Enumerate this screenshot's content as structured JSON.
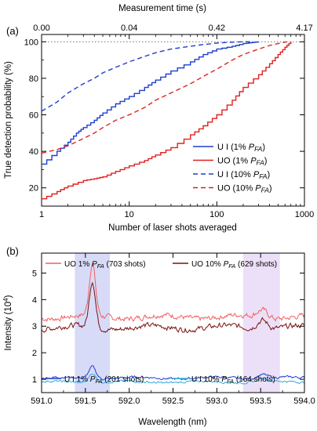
{
  "chart_data": [
    {
      "panel_label": "(a)",
      "type": "line",
      "xscale": "log",
      "xlim": [
        1,
        1000
      ],
      "ylim": [
        10,
        104
      ],
      "xlabel": "Number of laser shots averaged",
      "ylabel": "True detection probability (%)",
      "x_ticks": [
        1,
        10,
        100,
        1000
      ],
      "x_tick_labels": [
        "1",
        "10",
        "100",
        "1000"
      ],
      "y_ticks": [
        20,
        40,
        60,
        80,
        100
      ],
      "y_tick_labels": [
        "20",
        "40",
        "60",
        "80",
        "100"
      ],
      "top_axis": {
        "label": "Measurement time (s)",
        "ticks": [
          1,
          10,
          100,
          1000
        ],
        "tick_labels": [
          "0.00",
          "0.04",
          "0.42",
          "4.17"
        ]
      },
      "reference_line": {
        "y": 100,
        "style": "dotted"
      },
      "legend": {
        "position": "lower-right",
        "entries": [
          {
            "text": "U I (1% ",
            "sub": "P",
            "subsub": "FA",
            "close": ")"
          },
          {
            "text": "UO (1% ",
            "sub": "P",
            "subsub": "FA",
            "close": ")"
          },
          {
            "text": "U I (10% ",
            "sub": "P",
            "subsub": "FA",
            "close": ")"
          },
          {
            "text": "UO (10% ",
            "sub": "P",
            "subsub": "FA",
            "close": ")"
          }
        ]
      },
      "series": [
        {
          "color": "#1f3fcf",
          "dash": "solid",
          "x": [
            1,
            1.5,
            2,
            2.5,
            3,
            4,
            5,
            7,
            10,
            15,
            20,
            30,
            50,
            70,
            100,
            150,
            200,
            250,
            300
          ],
          "y": [
            33,
            40,
            45,
            50,
            53,
            57,
            61,
            66,
            70,
            75,
            79,
            84,
            89,
            93,
            96,
            97.5,
            99,
            99.6,
            100
          ]
        },
        {
          "color": "#e02020",
          "dash": "solid",
          "x": [
            1,
            1.5,
            2,
            3,
            4,
            5,
            7,
            10,
            15,
            20,
            30,
            50,
            70,
            100,
            150,
            200,
            300,
            400,
            500,
            600,
            700
          ],
          "y": [
            14,
            18,
            21,
            24,
            25,
            26,
            29,
            32,
            35,
            38,
            42,
            49,
            54,
            60,
            68,
            75,
            82,
            88,
            93,
            97,
            100
          ]
        },
        {
          "color": "#1f3fcf",
          "dash": "dashed",
          "x": [
            1,
            1.5,
            2,
            3,
            4,
            5,
            7,
            10,
            15,
            20,
            30,
            50,
            70,
            100,
            150,
            200,
            250
          ],
          "y": [
            62,
            67,
            72,
            77,
            80,
            83,
            86,
            89,
            92,
            94,
            96,
            97.5,
            98.5,
            99.3,
            99.8,
            100,
            100
          ]
        },
        {
          "color": "#e02020",
          "dash": "dashed",
          "x": [
            1,
            1.5,
            2,
            3,
            4,
            5,
            7,
            10,
            15,
            20,
            30,
            50,
            70,
            100,
            150,
            200,
            300,
            400,
            500,
            629
          ],
          "y": [
            39,
            41,
            43,
            47,
            50,
            53,
            57,
            60,
            64,
            68,
            72,
            77,
            81,
            85,
            90,
            93,
            96,
            98,
            99,
            100
          ]
        }
      ]
    },
    {
      "panel_label": "(b)",
      "type": "line",
      "xlim": [
        591.0,
        594.0
      ],
      "ylim": [
        0.5,
        5.75
      ],
      "xlabel": "Wavelength (nm)",
      "ylabel": "Intensity (10",
      "ylabel_sup": "4",
      "ylabel_close": ")",
      "x_ticks": [
        591.0,
        591.5,
        592.0,
        592.5,
        593.0,
        593.5,
        594.0
      ],
      "x_tick_labels": [
        "591.0",
        "591.5",
        "592.0",
        "592.5",
        "593.0",
        "593.5",
        "594.0"
      ],
      "y_ticks": [
        1,
        2,
        3,
        4,
        5
      ],
      "y_tick_labels": [
        "1",
        "2",
        "3",
        "4",
        "5"
      ],
      "highlight_bands": [
        {
          "x0": 591.38,
          "x1": 591.78,
          "color": "#c9cff5"
        },
        {
          "x0": 593.3,
          "x1": 593.72,
          "color": "#e6d6f5"
        }
      ],
      "legend_top": [
        {
          "text": "UO 1% ",
          "sub": "P",
          "subsub": "FA",
          "close": " (703 shots)"
        },
        {
          "text": "UO 10% ",
          "sub": "P",
          "subsub": "FA",
          "close": " (629 shots)"
        }
      ],
      "legend_bottom": [
        {
          "text": "U I 1% ",
          "sub": "P",
          "subsub": "FA",
          "close": " (201 shots)"
        },
        {
          "text": "U I 10% ",
          "sub": "P",
          "subsub": "FA",
          "close": " (164 shots)"
        }
      ],
      "series": [
        {
          "color": "#f06060",
          "baseline": 3.35,
          "noise": 0.18,
          "peaks": [
            [
              591.58,
              1.95,
              0.035
            ],
            [
              593.52,
              0.3,
              0.06
            ]
          ]
        },
        {
          "color": "#7a1010",
          "baseline": 2.95,
          "noise": 0.18,
          "peaks": [
            [
              591.58,
              1.75,
              0.035
            ],
            [
              593.52,
              0.35,
              0.06
            ]
          ]
        },
        {
          "color": "#1f3fcf",
          "baseline": 1.05,
          "noise": 0.08,
          "peaks": [
            [
              591.58,
              0.45,
              0.04
            ],
            [
              593.52,
              0.15,
              0.06
            ]
          ]
        },
        {
          "color": "#33aadd",
          "baseline": 0.9,
          "noise": 0.07,
          "peaks": [
            [
              591.58,
              0.35,
              0.04
            ],
            [
              593.52,
              0.12,
              0.06
            ]
          ]
        }
      ]
    }
  ]
}
